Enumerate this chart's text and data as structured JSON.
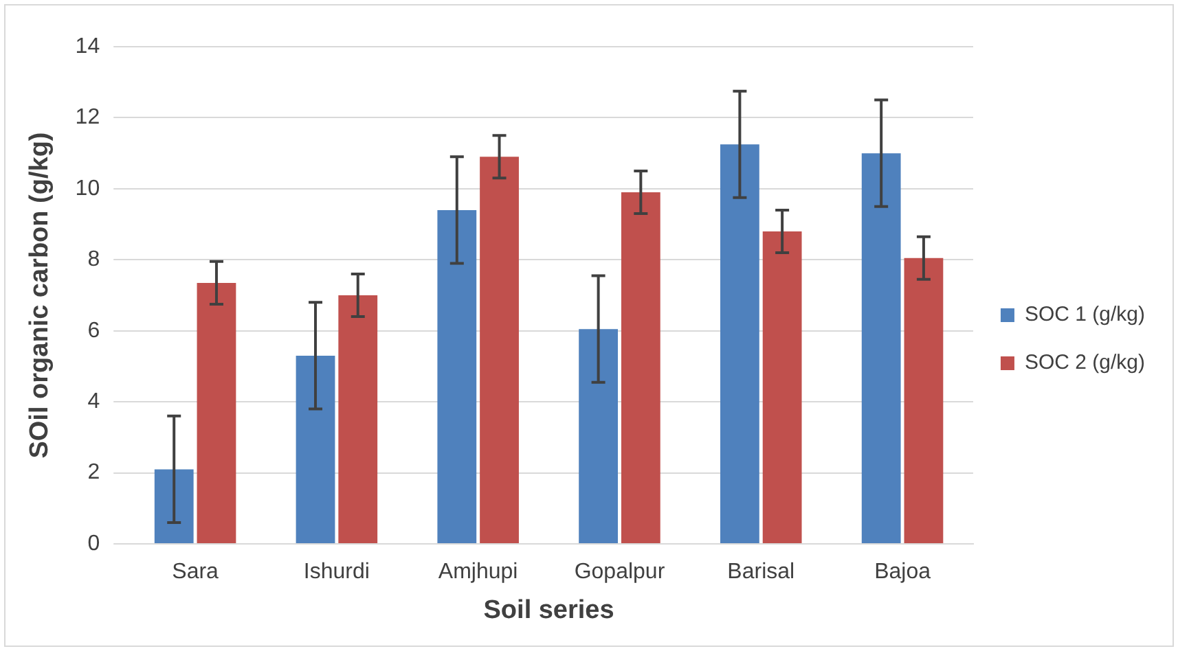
{
  "chart_data": {
    "type": "bar",
    "xlabel": "Soil series",
    "ylabel": "SOil organic carbon (g/kg)",
    "categories": [
      "Sara",
      "Ishurdi",
      "Amjhupi",
      "Gopalpur",
      "Barisal",
      "Bajoa"
    ],
    "series": [
      {
        "name": "SOC 1 (g/kg)",
        "color": "#4f81bd",
        "values": [
          2.1,
          5.3,
          9.4,
          6.05,
          11.25,
          11.0
        ],
        "errors": [
          1.5,
          1.5,
          1.5,
          1.5,
          1.5,
          1.5
        ]
      },
      {
        "name": "SOC 2 (g/kg)",
        "color": "#c0504d",
        "values": [
          7.35,
          7.0,
          10.9,
          9.9,
          8.8,
          8.05
        ],
        "errors": [
          0.6,
          0.6,
          0.6,
          0.6,
          0.6,
          0.6
        ]
      }
    ],
    "ylim": [
      0,
      14
    ],
    "yticks": [
      0,
      2,
      4,
      6,
      8,
      10,
      12,
      14
    ],
    "grid": "y",
    "legend": "right"
  }
}
